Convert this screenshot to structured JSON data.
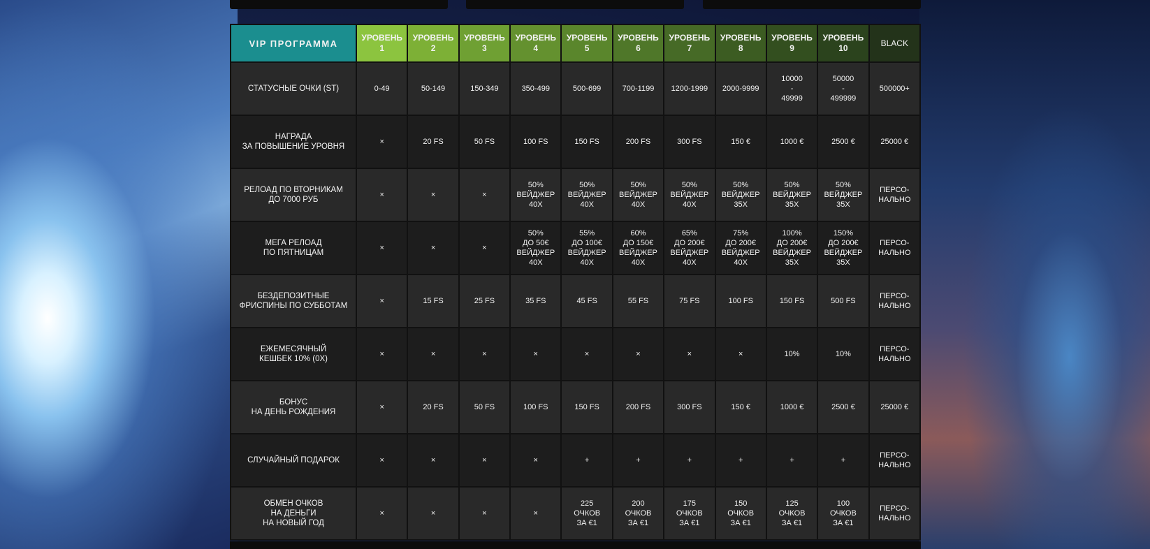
{
  "header": {
    "title": "VIP ПРОГРАММА",
    "levels": [
      "УРОВЕНЬ\n1",
      "УРОВЕНЬ\n2",
      "УРОВЕНЬ\n3",
      "УРОВЕНЬ\n4",
      "УРОВЕНЬ\n5",
      "УРОВЕНЬ\n6",
      "УРОВЕНЬ\n7",
      "УРОВЕНЬ\n8",
      "УРОВЕНЬ\n9",
      "УРОВЕНЬ\n10",
      "BLACK"
    ]
  },
  "colors": {
    "title_bg": "#1b8e8f",
    "level_gradient_start": "#8cc43f",
    "level_gradient_end": "#23331a",
    "cross": "#e23a3a"
  },
  "rows": [
    {
      "label": "СТАТУСНЫЕ ОЧКИ (ST)",
      "cells": [
        "0-49",
        "50-149",
        "150-349",
        "350-499",
        "500-699",
        "700-1199",
        "1200-1999",
        "2000-9999",
        "10000\n-\n49999",
        "50000\n-\n499999",
        "500000+"
      ]
    },
    {
      "label": "НАГРАДА\nЗА ПОВЫШЕНИЕ УРОВНЯ",
      "cells": [
        "×",
        "20 FS",
        "50 FS",
        "100 FS",
        "150 FS",
        "200 FS",
        "300 FS",
        "150 €",
        "1000 €",
        "2500 €",
        "25000 €"
      ]
    },
    {
      "label": "РЕЛОАД ПО ВТОРНИКАМ\nДО 7000 РУБ",
      "cells": [
        "×",
        "×",
        "×",
        "50%\nВЕЙДЖЕР\n40X",
        "50%\nВЕЙДЖЕР\n40X",
        "50%\nВЕЙДЖЕР\n40X",
        "50%\nВЕЙДЖЕР\n40X",
        "50%\nВЕЙДЖЕР\n35X",
        "50%\nВЕЙДЖЕР\n35X",
        "50%\nВЕЙДЖЕР\n35X",
        "ПЕРСО-\nНАЛЬНО"
      ]
    },
    {
      "label": "МЕГА РЕЛОАД\nПО ПЯТНИЦАМ",
      "cells": [
        "×",
        "×",
        "×",
        "50%\nДО 50€\nВЕЙДЖЕР\n40X",
        "55%\nДО 100€\nВЕЙДЖЕР\n40X",
        "60%\nДО 150€\nВЕЙДЖЕР\n40X",
        "65%\nДО 200€\nВЕЙДЖЕР\n40X",
        "75%\nДО 200€\nВЕЙДЖЕР\n40X",
        "100%\nДО 200€\nВЕЙДЖЕР\n35X",
        "150%\nДО 200€\nВЕЙДЖЕР\n35X",
        "ПЕРСО-\nНАЛЬНО"
      ]
    },
    {
      "label": "БЕЗДЕПОЗИТНЫЕ\nФРИСПИНЫ ПО СУББОТАМ",
      "cells": [
        "×",
        "15 FS",
        "25 FS",
        "35 FS",
        "45 FS",
        "55 FS",
        "75 FS",
        "100 FS",
        "150 FS",
        "500 FS",
        "ПЕРСО-\nНАЛЬНО"
      ]
    },
    {
      "label": "ЕЖЕМЕСЯЧНЫЙ\nКЕШБЕК 10% (0X)",
      "cells": [
        "×",
        "×",
        "×",
        "×",
        "×",
        "×",
        "×",
        "×",
        "10%",
        "10%",
        "ПЕРСО-\nНАЛЬНО"
      ]
    },
    {
      "label": "БОНУС\nНА ДЕНЬ РОЖДЕНИЯ",
      "cells": [
        "×",
        "20 FS",
        "50 FS",
        "100 FS",
        "150 FS",
        "200 FS",
        "300 FS",
        "150 €",
        "1000 €",
        "2500 €",
        "25000 €"
      ]
    },
    {
      "label": "СЛУЧАЙНЫЙ ПОДАРОК",
      "cells": [
        "×",
        "×",
        "×",
        "×",
        "+",
        "+",
        "+",
        "+",
        "+",
        "+",
        "ПЕРСО-\nНАЛЬНО"
      ]
    },
    {
      "label": "ОБМЕН ОЧКОВ\nНА ДЕНЬГИ\nНА НОВЫЙ ГОД",
      "cells": [
        "×",
        "×",
        "×",
        "×",
        "225\nОЧКОВ\nЗА €1",
        "200\nОЧКОВ\nЗА €1",
        "175\nОЧКОВ\nЗА €1",
        "150\nОЧКОВ\nЗА €1",
        "125\nОЧКОВ\nЗА €1",
        "100\nОЧКОВ\nЗА €1",
        "ПЕРСО-\nНАЛЬНО"
      ]
    }
  ]
}
